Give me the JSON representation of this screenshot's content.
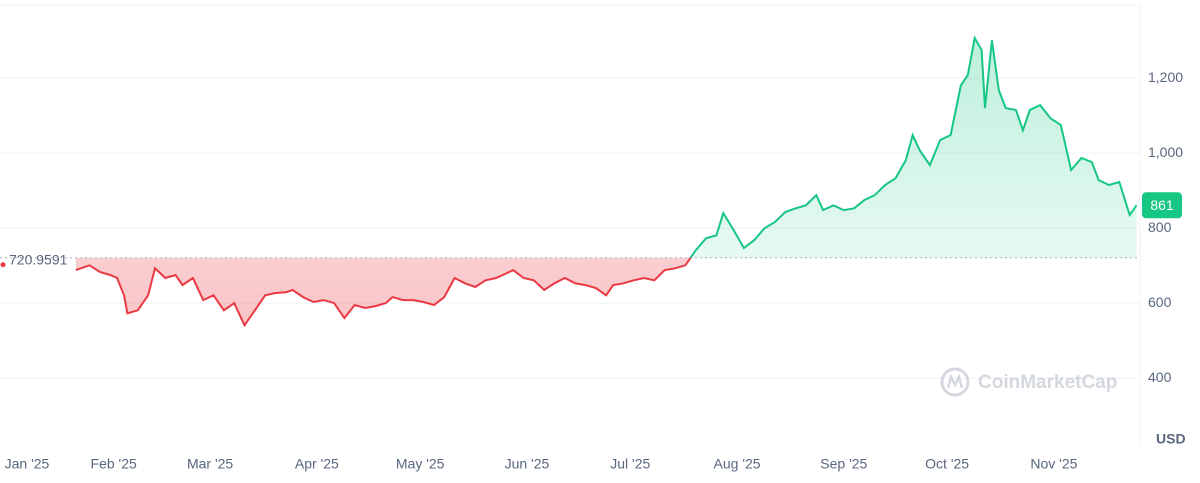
{
  "chart_data": {
    "type": "line",
    "baseline": 720.9591,
    "current_price_from_last": true,
    "color_up": "#16c784",
    "color_down": "#ea3943",
    "grid": true,
    "watermark": "CoinMarketCap",
    "currency": "USD",
    "xlim": [
      -22,
      309
    ],
    "ylim": [
      227,
      1395
    ],
    "xticks": [
      {
        "value": -20,
        "label": "Jan '25"
      },
      {
        "value": 11,
        "label": "Feb '25"
      },
      {
        "value": 39,
        "label": "Mar '25"
      },
      {
        "value": 70,
        "label": "Apr '25"
      },
      {
        "value": 100,
        "label": "May '25"
      },
      {
        "value": 131,
        "label": "Jun '25"
      },
      {
        "value": 161,
        "label": "Jul '25"
      },
      {
        "value": 192,
        "label": "Aug '25"
      },
      {
        "value": 223,
        "label": "Sep '25"
      },
      {
        "value": 253,
        "label": "Oct '25"
      },
      {
        "value": 284,
        "label": "Nov '25"
      }
    ],
    "yticks": [
      400,
      600,
      800,
      {
        "value": 1000,
        "label": "1,000"
      },
      {
        "value": 1200,
        "label": "1,200"
      }
    ],
    "x": [
      0,
      4,
      7,
      10,
      12,
      14,
      15,
      18,
      21,
      23,
      26,
      29,
      31,
      34,
      37,
      40,
      43,
      46,
      49,
      52,
      55,
      58,
      61,
      63,
      66,
      69,
      72,
      75,
      78,
      81,
      84,
      87,
      90,
      92,
      95,
      98,
      101,
      104,
      107,
      110,
      113,
      116,
      119,
      122,
      124,
      127,
      130,
      133,
      136,
      139,
      142,
      145,
      148,
      151,
      154,
      156,
      159,
      162,
      165,
      168,
      171,
      174,
      177,
      180,
      183,
      186,
      188,
      191,
      194,
      197,
      200,
      203,
      206,
      209,
      212,
      215,
      217,
      220,
      223,
      226,
      229,
      232,
      235,
      238,
      241,
      243,
      245,
      248,
      251,
      254,
      257,
      259,
      261,
      263,
      264,
      266,
      268,
      270,
      273,
      275,
      277,
      280,
      283,
      286,
      289,
      292,
      295,
      297,
      300,
      303,
      306,
      308
    ],
    "series": [
      {
        "values": [
          688,
          701,
          683,
          675,
          667,
          621,
          573,
          581,
          621,
          693,
          667,
          675,
          648,
          667,
          608,
          621,
          581,
          600,
          541,
          581,
          621,
          627,
          629,
          635,
          616,
          603,
          608,
          600,
          560,
          595,
          587,
          592,
          600,
          616,
          608,
          608,
          603,
          595,
          616,
          667,
          653,
          643,
          661,
          667,
          675,
          688,
          667,
          661,
          635,
          653,
          667,
          653,
          648,
          640,
          621,
          648,
          653,
          661,
          667,
          661,
          688,
          693,
          701,
          741,
          773,
          781,
          840,
          795,
          747,
          768,
          800,
          816,
          843,
          853,
          861,
          888,
          848,
          861,
          848,
          853,
          875,
          888,
          915,
          933,
          981,
          1048,
          1008,
          968,
          1035,
          1048,
          1181,
          1208,
          1307,
          1275,
          1120,
          1301,
          1168,
          1120,
          1115,
          1061,
          1115,
          1128,
          1093,
          1075,
          955,
          987,
          976,
          928,
          915,
          923,
          835,
          861
        ]
      }
    ]
  }
}
